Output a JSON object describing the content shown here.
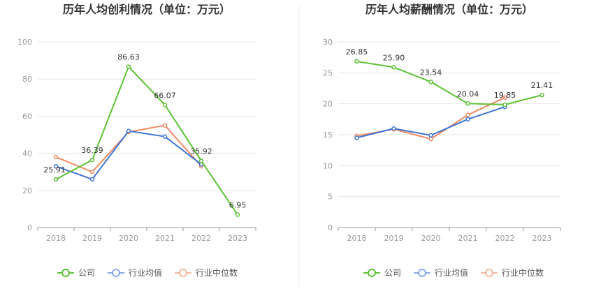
{
  "chart_data": [
    {
      "type": "line",
      "title": "历年人均创利情况（单位：万元）",
      "xlabel": "",
      "ylabel": "",
      "categories": [
        "2018",
        "2019",
        "2020",
        "2021",
        "2022",
        "2023"
      ],
      "ylim": [
        0,
        100
      ],
      "yticks": [
        0,
        20,
        40,
        60,
        80,
        100
      ],
      "grid": true,
      "legend": "bottom",
      "series": [
        {
          "name": "公司",
          "color": "#5cc234",
          "values": [
            25.91,
            36.39,
            86.63,
            66.07,
            35.92,
            6.95
          ],
          "labels": [
            "25.91",
            "36.39",
            "86.63",
            "66.07",
            "35.92",
            "6.95"
          ]
        },
        {
          "name": "行业均值",
          "color": "#3f73d6",
          "values": [
            33,
            26,
            52,
            49,
            34,
            null
          ]
        },
        {
          "name": "行业中位数",
          "color": "#ee8a63",
          "values": [
            38,
            30,
            51.5,
            55,
            33,
            null
          ]
        }
      ]
    },
    {
      "type": "line",
      "title": "历年人均薪酬情况（单位：万元）",
      "xlabel": "",
      "ylabel": "",
      "categories": [
        "2018",
        "2019",
        "2020",
        "2021",
        "2022",
        "2023"
      ],
      "ylim": [
        0,
        30
      ],
      "yticks": [
        0,
        5,
        10,
        15,
        20,
        25,
        30
      ],
      "grid": true,
      "legend": "bottom",
      "series": [
        {
          "name": "公司",
          "color": "#5cc234",
          "values": [
            26.85,
            25.9,
            23.54,
            20.04,
            19.85,
            21.41
          ],
          "labels": [
            "26.85",
            "25.90",
            "23.54",
            "20.04",
            "19.85",
            "21.41"
          ]
        },
        {
          "name": "行业均值",
          "color": "#3f73d6",
          "values": [
            14.5,
            16.0,
            14.9,
            17.5,
            19.5,
            null
          ]
        },
        {
          "name": "行业中位数",
          "color": "#ee8a63",
          "values": [
            14.8,
            15.9,
            14.3,
            18.2,
            21.0,
            null
          ]
        }
      ]
    }
  ]
}
